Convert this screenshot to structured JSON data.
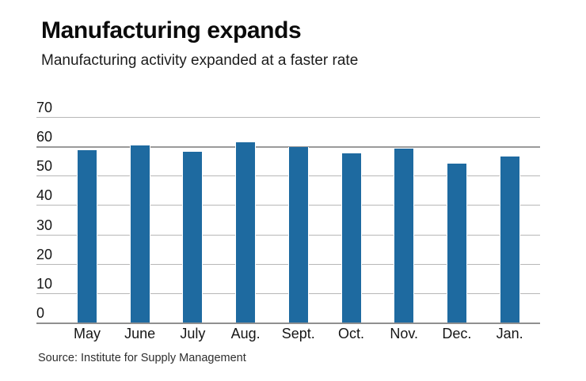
{
  "header": {
    "title": "Manufacturing expands",
    "subtitle": "Manufacturing activity expanded at a faster rate"
  },
  "footer": {
    "source": "Source: Institute for Supply Management"
  },
  "chart_data": {
    "type": "bar",
    "title": "Manufacturing expands",
    "subtitle": "Manufacturing activity expanded at a faster rate",
    "categories": [
      "May",
      "June",
      "July",
      "Aug.",
      "Sept.",
      "Oct.",
      "Nov.",
      "Dec.",
      "Jan."
    ],
    "values": [
      58.7,
      60.2,
      58.1,
      61.3,
      59.8,
      57.7,
      59.3,
      54.1,
      56.6
    ],
    "xlabel": "",
    "ylabel": "",
    "ylim": [
      0,
      70
    ],
    "yticks": [
      0,
      10,
      20,
      30,
      40,
      50,
      60,
      70
    ],
    "grid": true,
    "legend": "none",
    "emphasized_gridline": 60,
    "bar_color": "#1e6aa0",
    "gridline_color": "#b7b7b7",
    "axis_line_color": "#8f8f8f",
    "source": "Source: Institute for Supply Management"
  }
}
